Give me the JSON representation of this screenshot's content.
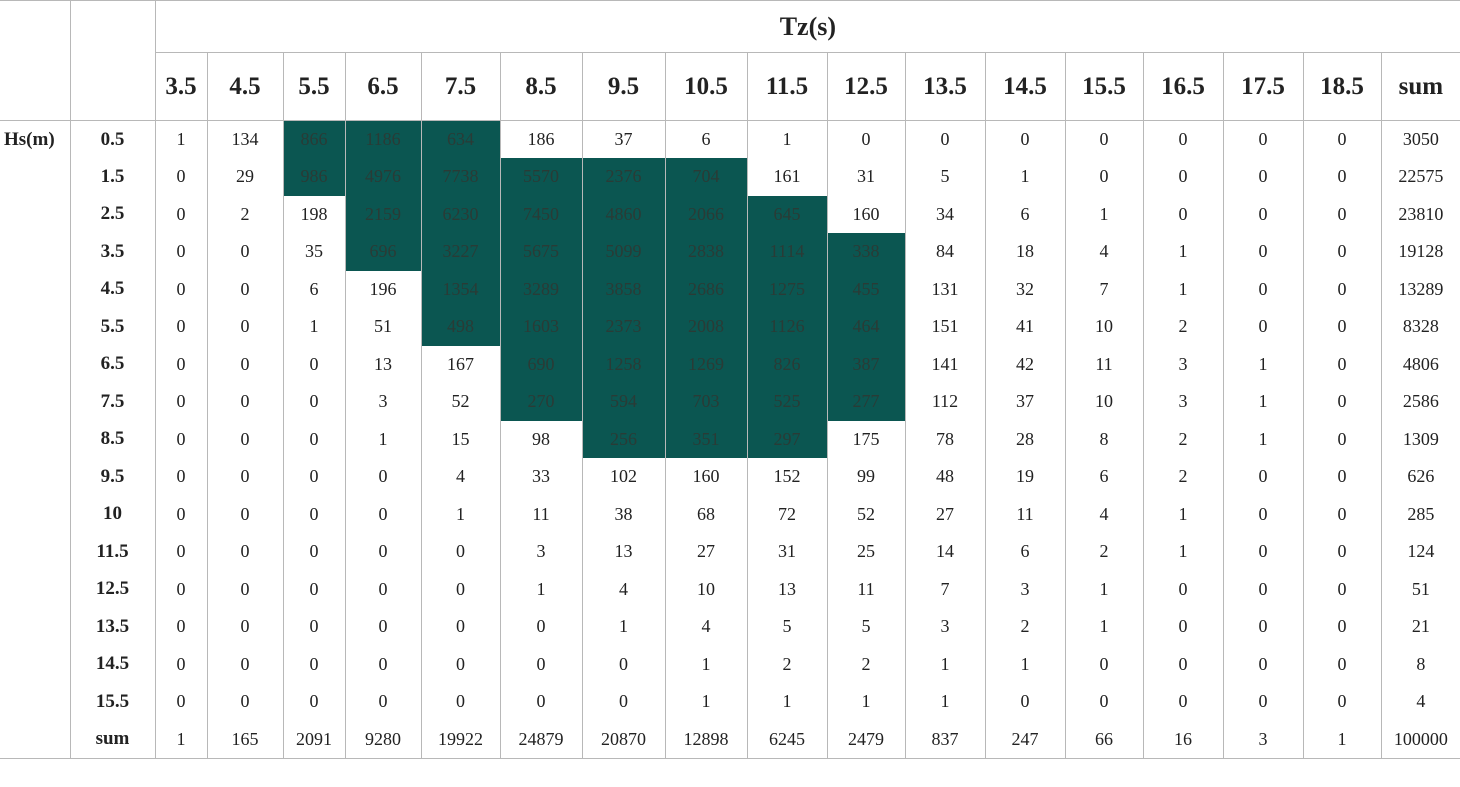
{
  "table": {
    "title": "Tz(s)",
    "row_axis_label": "Hs(m)",
    "columns": [
      "3.5",
      "4.5",
      "5.5",
      "6.5",
      "7.5",
      "8.5",
      "9.5",
      "10.5",
      "11.5",
      "12.5",
      "13.5",
      "14.5",
      "15.5",
      "16.5",
      "17.5",
      "18.5",
      "sum"
    ],
    "highlight_color": "#0b5651",
    "rows": [
      {
        "label": "0.5",
        "values": [
          "1",
          "134",
          "866",
          "1186",
          "634",
          "186",
          "37",
          "6",
          "1",
          "0",
          "0",
          "0",
          "0",
          "0",
          "0",
          "0",
          "3050"
        ],
        "shaded": [
          2,
          3,
          4
        ]
      },
      {
        "label": "1.5",
        "values": [
          "0",
          "29",
          "986",
          "4976",
          "7738",
          "5570",
          "2376",
          "704",
          "161",
          "31",
          "5",
          "1",
          "0",
          "0",
          "0",
          "0",
          "22575"
        ],
        "shaded": [
          2,
          3,
          4,
          5,
          6,
          7
        ]
      },
      {
        "label": "2.5",
        "values": [
          "0",
          "2",
          "198",
          "2159",
          "6230",
          "7450",
          "4860",
          "2066",
          "645",
          "160",
          "34",
          "6",
          "1",
          "0",
          "0",
          "0",
          "23810"
        ],
        "shaded": [
          3,
          4,
          5,
          6,
          7,
          8
        ]
      },
      {
        "label": "3.5",
        "values": [
          "0",
          "0",
          "35",
          "696",
          "3227",
          "5675",
          "5099",
          "2838",
          "1114",
          "338",
          "84",
          "18",
          "4",
          "1",
          "0",
          "0",
          "19128"
        ],
        "shaded": [
          3,
          4,
          5,
          6,
          7,
          8,
          9
        ]
      },
      {
        "label": "4.5",
        "values": [
          "0",
          "0",
          "6",
          "196",
          "1354",
          "3289",
          "3858",
          "2686",
          "1275",
          "455",
          "131",
          "32",
          "7",
          "1",
          "0",
          "0",
          "13289"
        ],
        "shaded": [
          4,
          5,
          6,
          7,
          8,
          9
        ]
      },
      {
        "label": "5.5",
        "values": [
          "0",
          "0",
          "1",
          "51",
          "498",
          "1603",
          "2373",
          "2008",
          "1126",
          "464",
          "151",
          "41",
          "10",
          "2",
          "0",
          "0",
          "8328"
        ],
        "shaded": [
          4,
          5,
          6,
          7,
          8,
          9
        ]
      },
      {
        "label": "6.5",
        "values": [
          "0",
          "0",
          "0",
          "13",
          "167",
          "690",
          "1258",
          "1269",
          "826",
          "387",
          "141",
          "42",
          "11",
          "3",
          "1",
          "0",
          "4806"
        ],
        "shaded": [
          5,
          6,
          7,
          8,
          9
        ]
      },
      {
        "label": "7.5",
        "values": [
          "0",
          "0",
          "0",
          "3",
          "52",
          "270",
          "594",
          "703",
          "525",
          "277",
          "112",
          "37",
          "10",
          "3",
          "1",
          "0",
          "2586"
        ],
        "shaded": [
          5,
          6,
          7,
          8,
          9
        ]
      },
      {
        "label": "8.5",
        "values": [
          "0",
          "0",
          "0",
          "1",
          "15",
          "98",
          "256",
          "351",
          "297",
          "175",
          "78",
          "28",
          "8",
          "2",
          "1",
          "0",
          "1309"
        ],
        "shaded": [
          6,
          7,
          8
        ]
      },
      {
        "label": "9.5",
        "values": [
          "0",
          "0",
          "0",
          "0",
          "4",
          "33",
          "102",
          "160",
          "152",
          "99",
          "48",
          "19",
          "6",
          "2",
          "0",
          "0",
          "626"
        ],
        "shaded": []
      },
      {
        "label": "10",
        "values": [
          "0",
          "0",
          "0",
          "0",
          "1",
          "11",
          "38",
          "68",
          "72",
          "52",
          "27",
          "11",
          "4",
          "1",
          "0",
          "0",
          "285"
        ],
        "shaded": []
      },
      {
        "label": "11.5",
        "values": [
          "0",
          "0",
          "0",
          "0",
          "0",
          "3",
          "13",
          "27",
          "31",
          "25",
          "14",
          "6",
          "2",
          "1",
          "0",
          "0",
          "124"
        ],
        "shaded": []
      },
      {
        "label": "12.5",
        "values": [
          "0",
          "0",
          "0",
          "0",
          "0",
          "1",
          "4",
          "10",
          "13",
          "11",
          "7",
          "3",
          "1",
          "0",
          "0",
          "0",
          "51"
        ],
        "shaded": []
      },
      {
        "label": "13.5",
        "values": [
          "0",
          "0",
          "0",
          "0",
          "0",
          "0",
          "1",
          "4",
          "5",
          "5",
          "3",
          "2",
          "1",
          "0",
          "0",
          "0",
          "21"
        ],
        "shaded": []
      },
      {
        "label": "14.5",
        "values": [
          "0",
          "0",
          "0",
          "0",
          "0",
          "0",
          "0",
          "1",
          "2",
          "2",
          "1",
          "1",
          "0",
          "0",
          "0",
          "0",
          "8"
        ],
        "shaded": []
      },
      {
        "label": "15.5",
        "values": [
          "0",
          "0",
          "0",
          "0",
          "0",
          "0",
          "0",
          "1",
          "1",
          "1",
          "1",
          "0",
          "0",
          "0",
          "0",
          "0",
          "4"
        ],
        "shaded": []
      }
    ],
    "sum_row": {
      "label": "sum",
      "values": [
        "1",
        "165",
        "2091",
        "9280",
        "19922",
        "24879",
        "20870",
        "12898",
        "6245",
        "2479",
        "837",
        "247",
        "66",
        "16",
        "3",
        "1",
        "100000"
      ]
    }
  }
}
